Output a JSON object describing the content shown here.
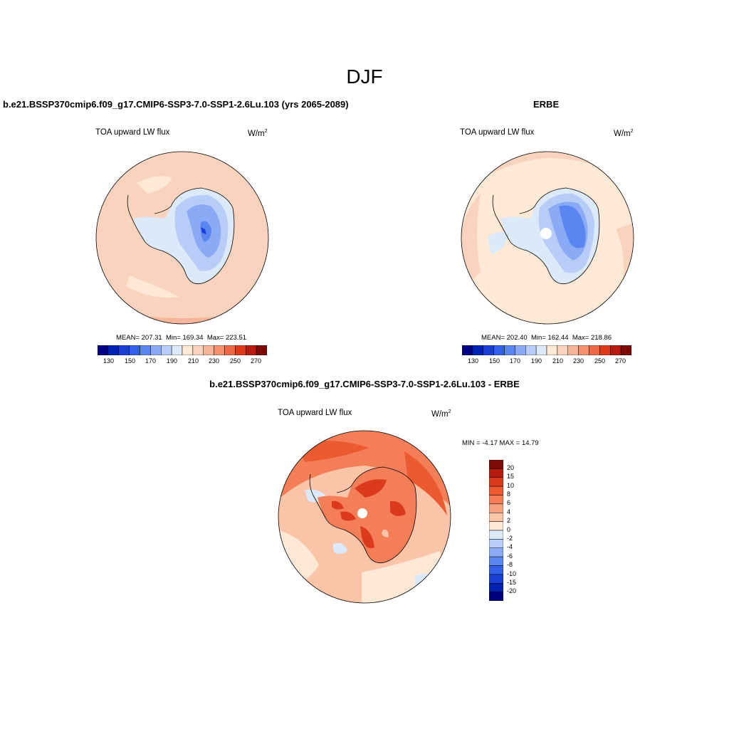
{
  "page": {
    "title": "DJF"
  },
  "panels": [
    {
      "title": "b.e21.BSSP370cmip6.f09_g17.CMIP6-SSP3-7.0-SSP1-2.6Lu.103 (yrs 2065-2089)",
      "variable": "TOA upward LW flux",
      "units_base": "W/m",
      "units_exp": "2",
      "stats": {
        "mean": "207.31",
        "min": "169.34",
        "max": "223.51"
      },
      "colorbar_ticks": [
        "130",
        "150",
        "170",
        "190",
        "210",
        "230",
        "250",
        "270"
      ]
    },
    {
      "title": "ERBE",
      "variable": "TOA upward LW flux",
      "units_base": "W/m",
      "units_exp": "2",
      "stats": {
        "mean": "202.40",
        "min": "162.44",
        "max": "218.86"
      },
      "colorbar_ticks": [
        "130",
        "150",
        "170",
        "190",
        "210",
        "230",
        "250",
        "270"
      ]
    }
  ],
  "difference": {
    "title": "b.e21.BSSP370cmip6.f09_g17.CMIP6-SSP3-7.0-SSP1-2.6Lu.103 - ERBE",
    "variable": "TOA upward LW flux",
    "units_base": "W/m",
    "units_exp": "2",
    "minmax": "MIN =  -4.17 MAX =  14.79",
    "colorbar_ticks": [
      "20",
      "15",
      "10",
      "8",
      "6",
      "4",
      "2",
      "0",
      "-2",
      "-4",
      "-6",
      "-8",
      "-10",
      "-15",
      "-20"
    ]
  },
  "colors": {
    "abs_scale": [
      "#000080",
      "#0022b0",
      "#1a3fd6",
      "#3560ea",
      "#5a86f2",
      "#8aaaf5",
      "#b7cdf7",
      "#dbe9f8",
      "#fde9d6",
      "#f9d3bd",
      "#f6b59a",
      "#f3906f",
      "#ec6a46",
      "#dc3a1c",
      "#b41d0d",
      "#7e0a05"
    ],
    "diff_scale": [
      "#7e0a05",
      "#b41d0d",
      "#dc3a1c",
      "#ec5a32",
      "#f37e58",
      "#f6a17f",
      "#f9c4a8",
      "#fde9d6",
      "#dbe9f8",
      "#b7cdf7",
      "#8aaaf5",
      "#5a86f2",
      "#3560ea",
      "#1a3fd6",
      "#0022b0",
      "#000080"
    ]
  }
}
